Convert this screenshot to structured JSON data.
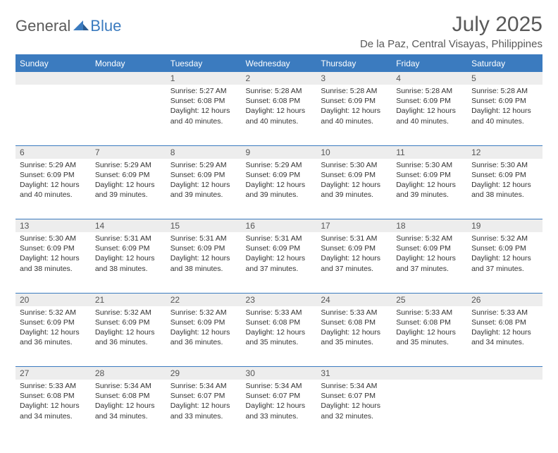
{
  "logo": {
    "general": "General",
    "blue": "Blue"
  },
  "title": "July 2025",
  "location": "De la Paz, Central Visayas, Philippines",
  "colors": {
    "header_bg": "#3b7bbf",
    "header_fg": "#ffffff",
    "daynum_bg": "#ededed",
    "border": "#3b7bbf",
    "text": "#333333",
    "muted": "#595959"
  },
  "weekdays": [
    "Sunday",
    "Monday",
    "Tuesday",
    "Wednesday",
    "Thursday",
    "Friday",
    "Saturday"
  ],
  "weeks": [
    [
      null,
      null,
      {
        "n": "1",
        "sr": "5:27 AM",
        "ss": "6:08 PM",
        "dl": "12 hours and 40 minutes."
      },
      {
        "n": "2",
        "sr": "5:28 AM",
        "ss": "6:08 PM",
        "dl": "12 hours and 40 minutes."
      },
      {
        "n": "3",
        "sr": "5:28 AM",
        "ss": "6:09 PM",
        "dl": "12 hours and 40 minutes."
      },
      {
        "n": "4",
        "sr": "5:28 AM",
        "ss": "6:09 PM",
        "dl": "12 hours and 40 minutes."
      },
      {
        "n": "5",
        "sr": "5:28 AM",
        "ss": "6:09 PM",
        "dl": "12 hours and 40 minutes."
      }
    ],
    [
      {
        "n": "6",
        "sr": "5:29 AM",
        "ss": "6:09 PM",
        "dl": "12 hours and 40 minutes."
      },
      {
        "n": "7",
        "sr": "5:29 AM",
        "ss": "6:09 PM",
        "dl": "12 hours and 39 minutes."
      },
      {
        "n": "8",
        "sr": "5:29 AM",
        "ss": "6:09 PM",
        "dl": "12 hours and 39 minutes."
      },
      {
        "n": "9",
        "sr": "5:29 AM",
        "ss": "6:09 PM",
        "dl": "12 hours and 39 minutes."
      },
      {
        "n": "10",
        "sr": "5:30 AM",
        "ss": "6:09 PM",
        "dl": "12 hours and 39 minutes."
      },
      {
        "n": "11",
        "sr": "5:30 AM",
        "ss": "6:09 PM",
        "dl": "12 hours and 39 minutes."
      },
      {
        "n": "12",
        "sr": "5:30 AM",
        "ss": "6:09 PM",
        "dl": "12 hours and 38 minutes."
      }
    ],
    [
      {
        "n": "13",
        "sr": "5:30 AM",
        "ss": "6:09 PM",
        "dl": "12 hours and 38 minutes."
      },
      {
        "n": "14",
        "sr": "5:31 AM",
        "ss": "6:09 PM",
        "dl": "12 hours and 38 minutes."
      },
      {
        "n": "15",
        "sr": "5:31 AM",
        "ss": "6:09 PM",
        "dl": "12 hours and 38 minutes."
      },
      {
        "n": "16",
        "sr": "5:31 AM",
        "ss": "6:09 PM",
        "dl": "12 hours and 37 minutes."
      },
      {
        "n": "17",
        "sr": "5:31 AM",
        "ss": "6:09 PM",
        "dl": "12 hours and 37 minutes."
      },
      {
        "n": "18",
        "sr": "5:32 AM",
        "ss": "6:09 PM",
        "dl": "12 hours and 37 minutes."
      },
      {
        "n": "19",
        "sr": "5:32 AM",
        "ss": "6:09 PM",
        "dl": "12 hours and 37 minutes."
      }
    ],
    [
      {
        "n": "20",
        "sr": "5:32 AM",
        "ss": "6:09 PM",
        "dl": "12 hours and 36 minutes."
      },
      {
        "n": "21",
        "sr": "5:32 AM",
        "ss": "6:09 PM",
        "dl": "12 hours and 36 minutes."
      },
      {
        "n": "22",
        "sr": "5:32 AM",
        "ss": "6:09 PM",
        "dl": "12 hours and 36 minutes."
      },
      {
        "n": "23",
        "sr": "5:33 AM",
        "ss": "6:08 PM",
        "dl": "12 hours and 35 minutes."
      },
      {
        "n": "24",
        "sr": "5:33 AM",
        "ss": "6:08 PM",
        "dl": "12 hours and 35 minutes."
      },
      {
        "n": "25",
        "sr": "5:33 AM",
        "ss": "6:08 PM",
        "dl": "12 hours and 35 minutes."
      },
      {
        "n": "26",
        "sr": "5:33 AM",
        "ss": "6:08 PM",
        "dl": "12 hours and 34 minutes."
      }
    ],
    [
      {
        "n": "27",
        "sr": "5:33 AM",
        "ss": "6:08 PM",
        "dl": "12 hours and 34 minutes."
      },
      {
        "n": "28",
        "sr": "5:34 AM",
        "ss": "6:08 PM",
        "dl": "12 hours and 34 minutes."
      },
      {
        "n": "29",
        "sr": "5:34 AM",
        "ss": "6:07 PM",
        "dl": "12 hours and 33 minutes."
      },
      {
        "n": "30",
        "sr": "5:34 AM",
        "ss": "6:07 PM",
        "dl": "12 hours and 33 minutes."
      },
      {
        "n": "31",
        "sr": "5:34 AM",
        "ss": "6:07 PM",
        "dl": "12 hours and 32 minutes."
      },
      null,
      null
    ]
  ],
  "labels": {
    "sunrise": "Sunrise:",
    "sunset": "Sunset:",
    "daylight": "Daylight:"
  }
}
